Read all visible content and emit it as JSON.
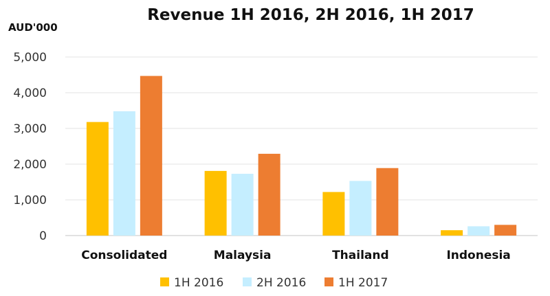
{
  "chart_data": {
    "type": "bar",
    "title": "Revenue 1H 2016, 2H 2016, 1H 2017",
    "unit_label": "AUD'000",
    "categories": [
      "Consolidated",
      "Malaysia",
      "Thailand",
      "Indonesia"
    ],
    "series": [
      {
        "name": "1H 2016",
        "color": "#FFC000",
        "values": [
          3180,
          1810,
          1220,
          150
        ]
      },
      {
        "name": "2H 2016",
        "color": "#C5EEFF",
        "values": [
          3480,
          1730,
          1530,
          260
        ]
      },
      {
        "name": "1H 2017",
        "color": "#ED7D31",
        "values": [
          4470,
          2290,
          1890,
          300
        ]
      }
    ],
    "yticks": [
      "0",
      "1,000",
      "2,000",
      "3,000",
      "4,000",
      "5,000"
    ],
    "ylim": [
      0,
      5000
    ],
    "grid": true,
    "legend_position": "bottom"
  }
}
